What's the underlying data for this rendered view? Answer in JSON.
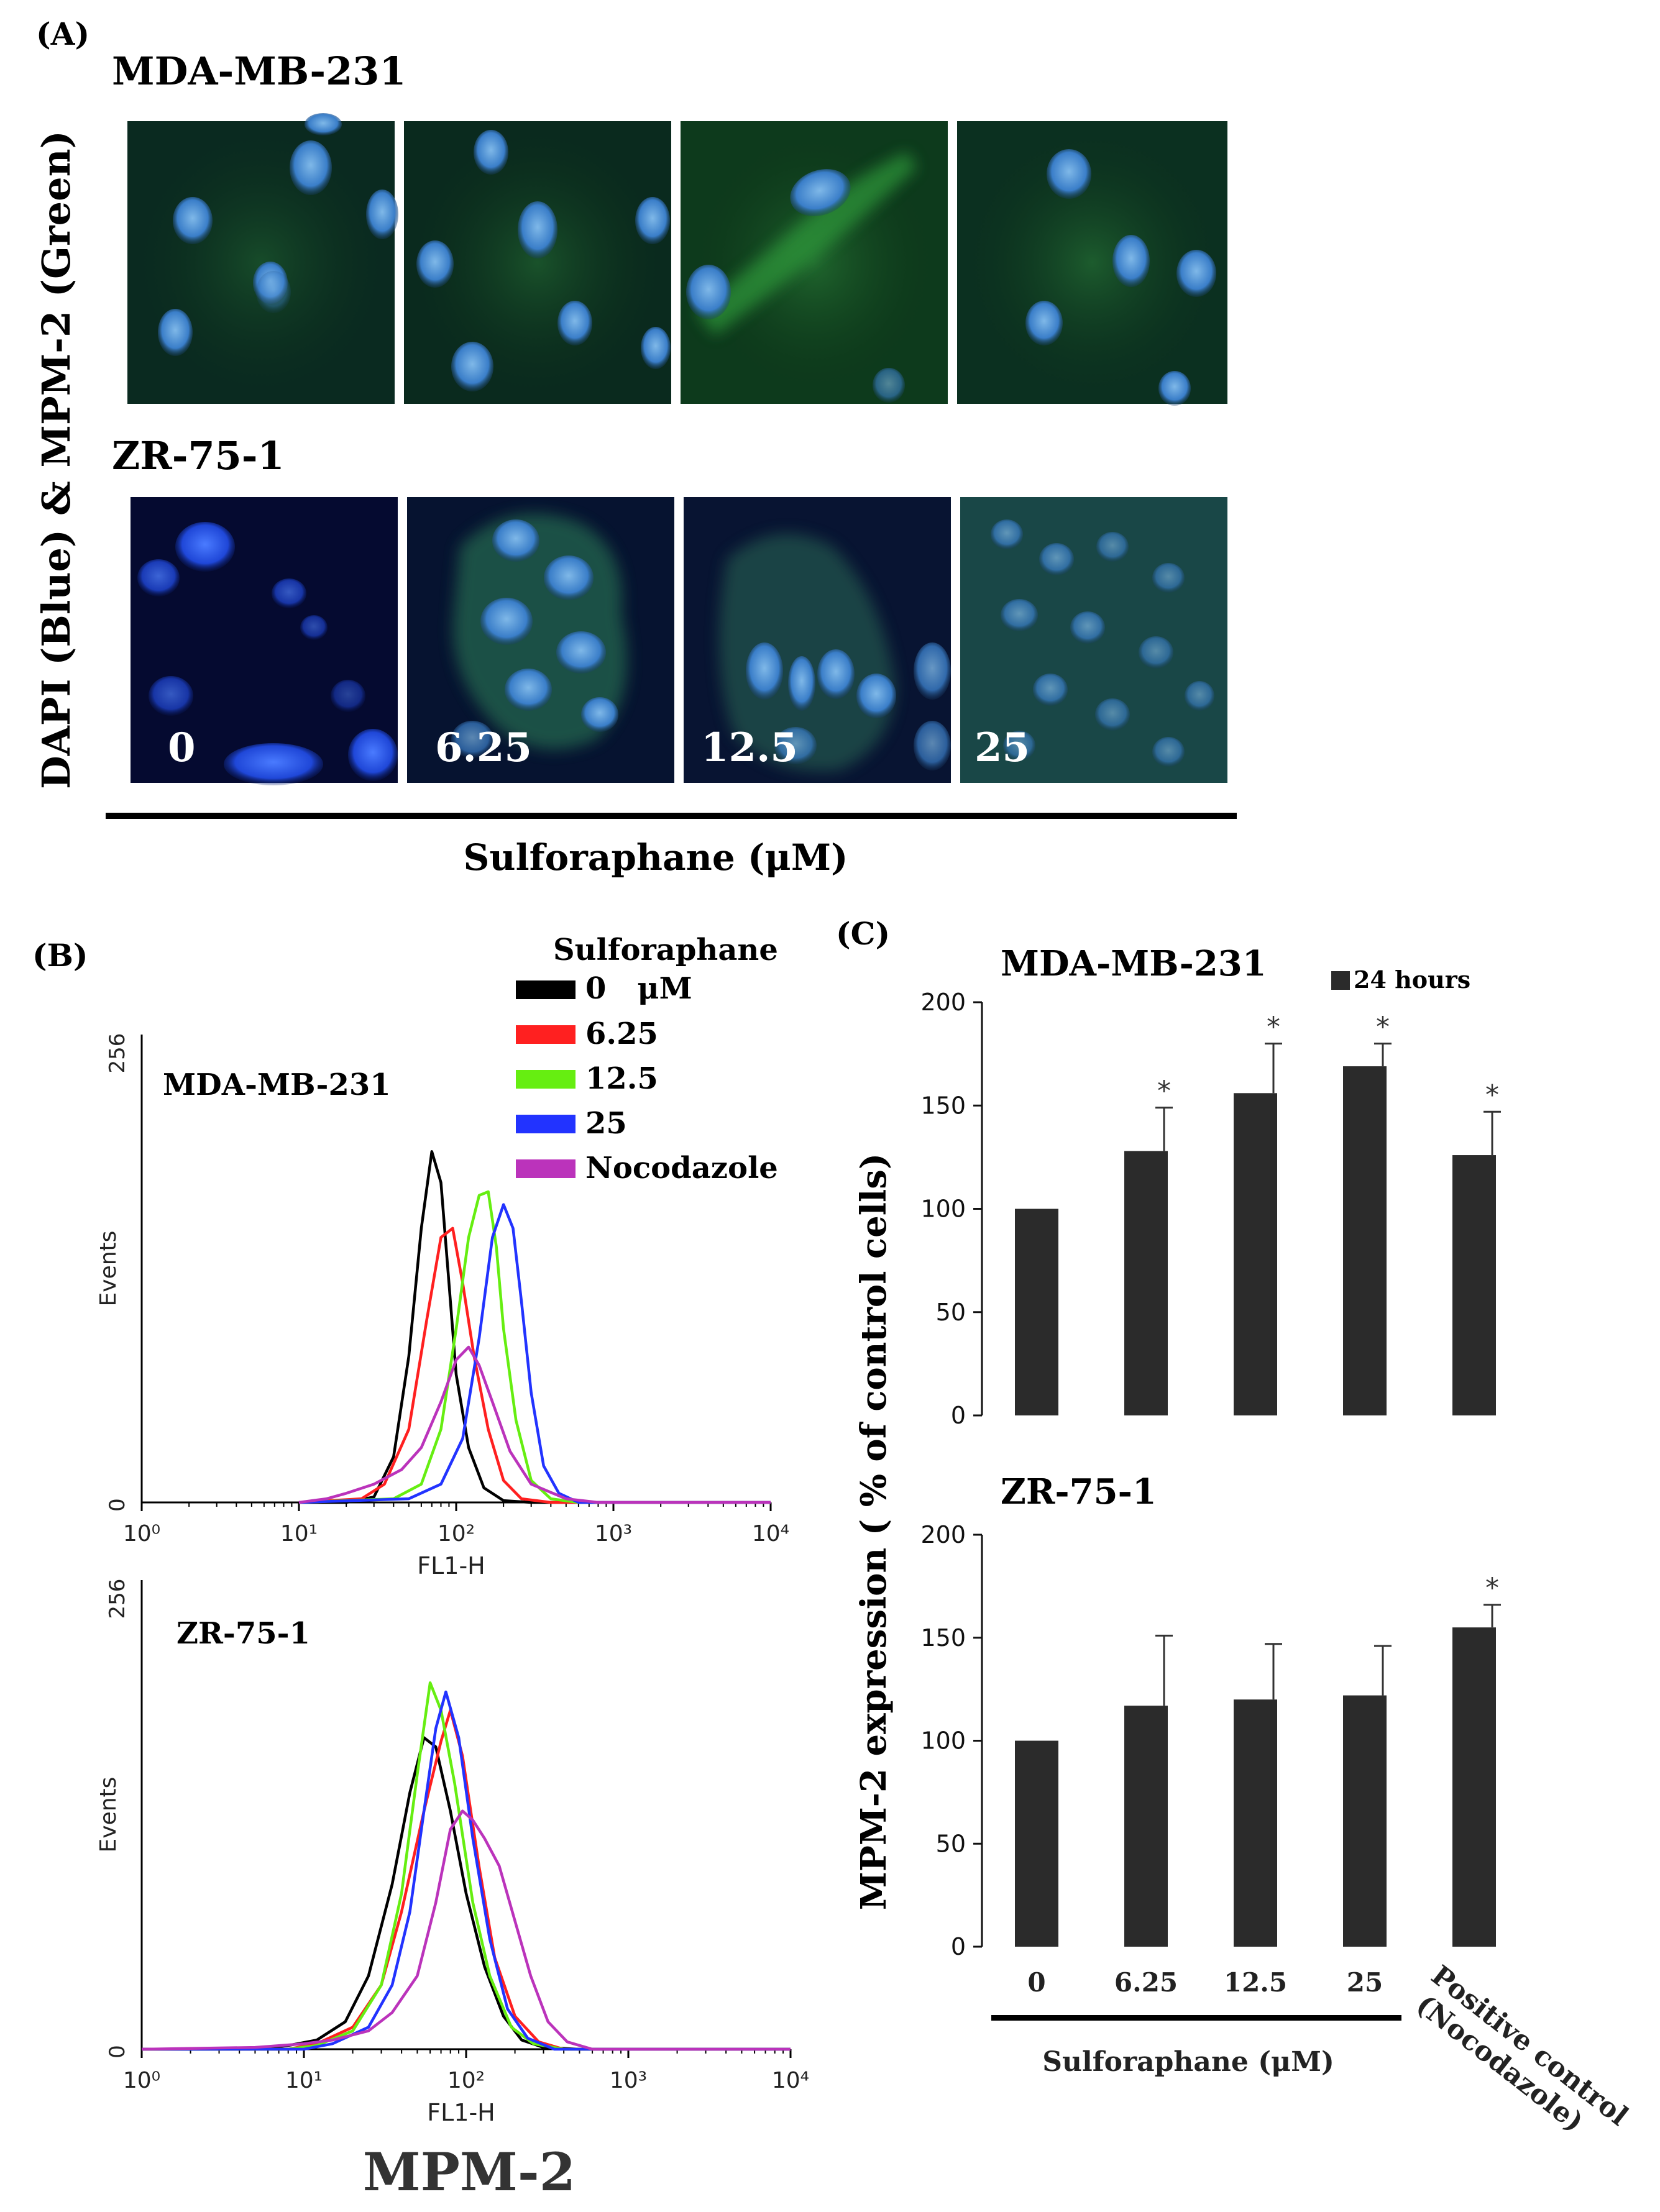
{
  "panel_a": {
    "label": "(A)",
    "ylabel": "DAPI (Blue) & MPM-2 (Green)",
    "xlabel": "Sulforaphane (μM)",
    "rows": [
      {
        "cell_line": "MDA-MB-231",
        "concentrations": [
          "",
          "",
          "",
          ""
        ]
      },
      {
        "cell_line": "ZR-75-1",
        "concentrations": [
          "0",
          "6.25",
          "12.5",
          "25"
        ]
      }
    ]
  },
  "panel_b": {
    "label": "(B)",
    "legend_title": "Sulforaphane",
    "legend": [
      {
        "label": "0   μM",
        "color": "#000000"
      },
      {
        "label": "6.25",
        "color": "#ff2020"
      },
      {
        "label": "12.5",
        "color": "#66ee11"
      },
      {
        "label": "25",
        "color": "#2233ff"
      },
      {
        "label": "Nocodazole",
        "color": "#bb33bb"
      }
    ],
    "bottom_label": "MPM-2"
  },
  "chart_data": [
    {
      "type": "line",
      "title": "MDA-MB-231",
      "xlabel": "FL1-H",
      "ylabel": "Events",
      "x_scale": "log",
      "xlim": [
        1,
        10000
      ],
      "ylim": [
        0,
        256
      ],
      "x_ticks": [
        "10⁰",
        "10¹",
        "10²",
        "10³",
        "10⁴"
      ],
      "y_ticks": [
        "0",
        "256"
      ],
      "series": [
        {
          "name": "0   μM",
          "color": "#000000",
          "points": [
            [
              10,
              0
            ],
            [
              20,
              0
            ],
            [
              30,
              3
            ],
            [
              40,
              25
            ],
            [
              50,
              80
            ],
            [
              60,
              150
            ],
            [
              70,
              192
            ],
            [
              80,
              175
            ],
            [
              90,
              120
            ],
            [
              100,
              70
            ],
            [
              120,
              30
            ],
            [
              150,
              8
            ],
            [
              200,
              1
            ],
            [
              300,
              0
            ],
            [
              10000,
              0
            ]
          ]
        },
        {
          "name": "6.25",
          "color": "#ff2020",
          "points": [
            [
              10,
              0
            ],
            [
              25,
              2
            ],
            [
              35,
              10
            ],
            [
              50,
              40
            ],
            [
              65,
              100
            ],
            [
              80,
              145
            ],
            [
              95,
              150
            ],
            [
              110,
              120
            ],
            [
              130,
              80
            ],
            [
              160,
              40
            ],
            [
              200,
              12
            ],
            [
              260,
              2
            ],
            [
              400,
              0
            ],
            [
              10000,
              0
            ]
          ]
        },
        {
          "name": "12.5",
          "color": "#66ee11",
          "points": [
            [
              10,
              0
            ],
            [
              40,
              2
            ],
            [
              60,
              10
            ],
            [
              80,
              40
            ],
            [
              100,
              95
            ],
            [
              120,
              145
            ],
            [
              140,
              168
            ],
            [
              160,
              170
            ],
            [
              180,
              140
            ],
            [
              200,
              95
            ],
            [
              240,
              45
            ],
            [
              300,
              12
            ],
            [
              400,
              2
            ],
            [
              600,
              0
            ],
            [
              10000,
              0
            ]
          ]
        },
        {
          "name": "25",
          "color": "#2233ff",
          "points": [
            [
              10,
              0
            ],
            [
              50,
              2
            ],
            [
              80,
              10
            ],
            [
              110,
              35
            ],
            [
              140,
              90
            ],
            [
              170,
              145
            ],
            [
              200,
              163
            ],
            [
              230,
              150
            ],
            [
              260,
              110
            ],
            [
              300,
              60
            ],
            [
              360,
              20
            ],
            [
              450,
              5
            ],
            [
              600,
              0
            ],
            [
              10000,
              0
            ]
          ]
        },
        {
          "name": "Nocodazole",
          "color": "#bb33bb",
          "points": [
            [
              10,
              0
            ],
            [
              15,
              2
            ],
            [
              20,
              5
            ],
            [
              30,
              10
            ],
            [
              45,
              18
            ],
            [
              60,
              30
            ],
            [
              80,
              55
            ],
            [
              100,
              78
            ],
            [
              120,
              85
            ],
            [
              140,
              75
            ],
            [
              170,
              55
            ],
            [
              220,
              28
            ],
            [
              300,
              10
            ],
            [
              500,
              2
            ],
            [
              800,
              0
            ],
            [
              10000,
              0
            ]
          ]
        }
      ]
    },
    {
      "type": "line",
      "title": "ZR-75-1",
      "xlabel": "FL1-H",
      "ylabel": "Events",
      "x_scale": "log",
      "xlim": [
        1,
        10000
      ],
      "ylim": [
        0,
        256
      ],
      "x_ticks": [
        "10⁰",
        "10¹",
        "10²",
        "10³",
        "10⁴"
      ],
      "y_ticks": [
        "0",
        "256"
      ],
      "series": [
        {
          "name": "0   μM",
          "color": "#000000",
          "points": [
            [
              1,
              0
            ],
            [
              5,
              0
            ],
            [
              8,
              2
            ],
            [
              12,
              5
            ],
            [
              18,
              15
            ],
            [
              25,
              40
            ],
            [
              35,
              90
            ],
            [
              45,
              140
            ],
            [
              55,
              170
            ],
            [
              65,
              165
            ],
            [
              80,
              130
            ],
            [
              100,
              85
            ],
            [
              130,
              45
            ],
            [
              170,
              18
            ],
            [
              220,
              5
            ],
            [
              300,
              1
            ],
            [
              500,
              0
            ],
            [
              10000,
              0
            ]
          ]
        },
        {
          "name": "6.25",
          "color": "#ff2020",
          "points": [
            [
              1,
              0
            ],
            [
              8,
              0
            ],
            [
              12,
              3
            ],
            [
              20,
              12
            ],
            [
              30,
              35
            ],
            [
              40,
              75
            ],
            [
              55,
              130
            ],
            [
              70,
              168
            ],
            [
              80,
              185
            ],
            [
              95,
              160
            ],
            [
              120,
              100
            ],
            [
              150,
              50
            ],
            [
              200,
              18
            ],
            [
              280,
              4
            ],
            [
              400,
              0
            ],
            [
              10000,
              0
            ]
          ]
        },
        {
          "name": "12.5",
          "color": "#66ee11",
          "points": [
            [
              1,
              0
            ],
            [
              8,
              0
            ],
            [
              12,
              2
            ],
            [
              20,
              10
            ],
            [
              30,
              35
            ],
            [
              40,
              85
            ],
            [
              50,
              150
            ],
            [
              60,
              200
            ],
            [
              70,
              185
            ],
            [
              85,
              145
            ],
            [
              110,
              80
            ],
            [
              140,
              40
            ],
            [
              190,
              12
            ],
            [
              260,
              3
            ],
            [
              400,
              0
            ],
            [
              10000,
              0
            ]
          ]
        },
        {
          "name": "25",
          "color": "#2233ff",
          "points": [
            [
              1,
              0
            ],
            [
              10,
              0
            ],
            [
              15,
              3
            ],
            [
              25,
              12
            ],
            [
              35,
              35
            ],
            [
              45,
              75
            ],
            [
              55,
              130
            ],
            [
              65,
              175
            ],
            [
              75,
              195
            ],
            [
              90,
              170
            ],
            [
              110,
              115
            ],
            [
              140,
              60
            ],
            [
              180,
              22
            ],
            [
              240,
              6
            ],
            [
              350,
              0
            ],
            [
              10000,
              0
            ]
          ]
        },
        {
          "name": "Nocodazole",
          "color": "#bb33bb",
          "points": [
            [
              1,
              0
            ],
            [
              5,
              1
            ],
            [
              10,
              3
            ],
            [
              15,
              5
            ],
            [
              25,
              10
            ],
            [
              35,
              20
            ],
            [
              50,
              40
            ],
            [
              65,
              80
            ],
            [
              80,
              120
            ],
            [
              95,
              130
            ],
            [
              110,
              125
            ],
            [
              130,
              115
            ],
            [
              160,
              100
            ],
            [
              200,
              70
            ],
            [
              250,
              40
            ],
            [
              320,
              15
            ],
            [
              420,
              4
            ],
            [
              600,
              0
            ],
            [
              10000,
              0
            ]
          ]
        }
      ]
    },
    {
      "type": "bar",
      "panel_label": "(C)",
      "title": "MDA-MB-231",
      "legend": "24 hours",
      "ylabel": "MPM-2 expression ( % of control cells)",
      "ylim": [
        0,
        200
      ],
      "y_ticks": [
        0,
        50,
        100,
        150,
        200
      ],
      "categories": [
        "0",
        "6.25",
        "12.5",
        "25",
        "Positive control (Nocodazole)"
      ],
      "values": [
        100,
        128,
        156,
        169,
        126
      ],
      "errors": [
        0,
        21,
        24,
        11,
        21
      ],
      "significant": [
        false,
        true,
        true,
        true,
        true
      ],
      "significance_marker": "*"
    },
    {
      "type": "bar",
      "title": "ZR-75-1",
      "ylim": [
        0,
        200
      ],
      "y_ticks": [
        0,
        50,
        100,
        150,
        200
      ],
      "categories": [
        "0",
        "6.25",
        "12.5",
        "25",
        "Positive control (Nocodazole)"
      ],
      "tick_labels": [
        "0",
        "6.25",
        "12.5",
        "25"
      ],
      "values": [
        100,
        117,
        120,
        122,
        155
      ],
      "errors": [
        0,
        34,
        27,
        24,
        11
      ],
      "significant": [
        false,
        false,
        false,
        false,
        true
      ],
      "significance_marker": "*",
      "xlabel": "Sulforaphane (μM)",
      "positive_control_label": [
        "Positive control",
        "(Nocodazole)"
      ]
    }
  ]
}
